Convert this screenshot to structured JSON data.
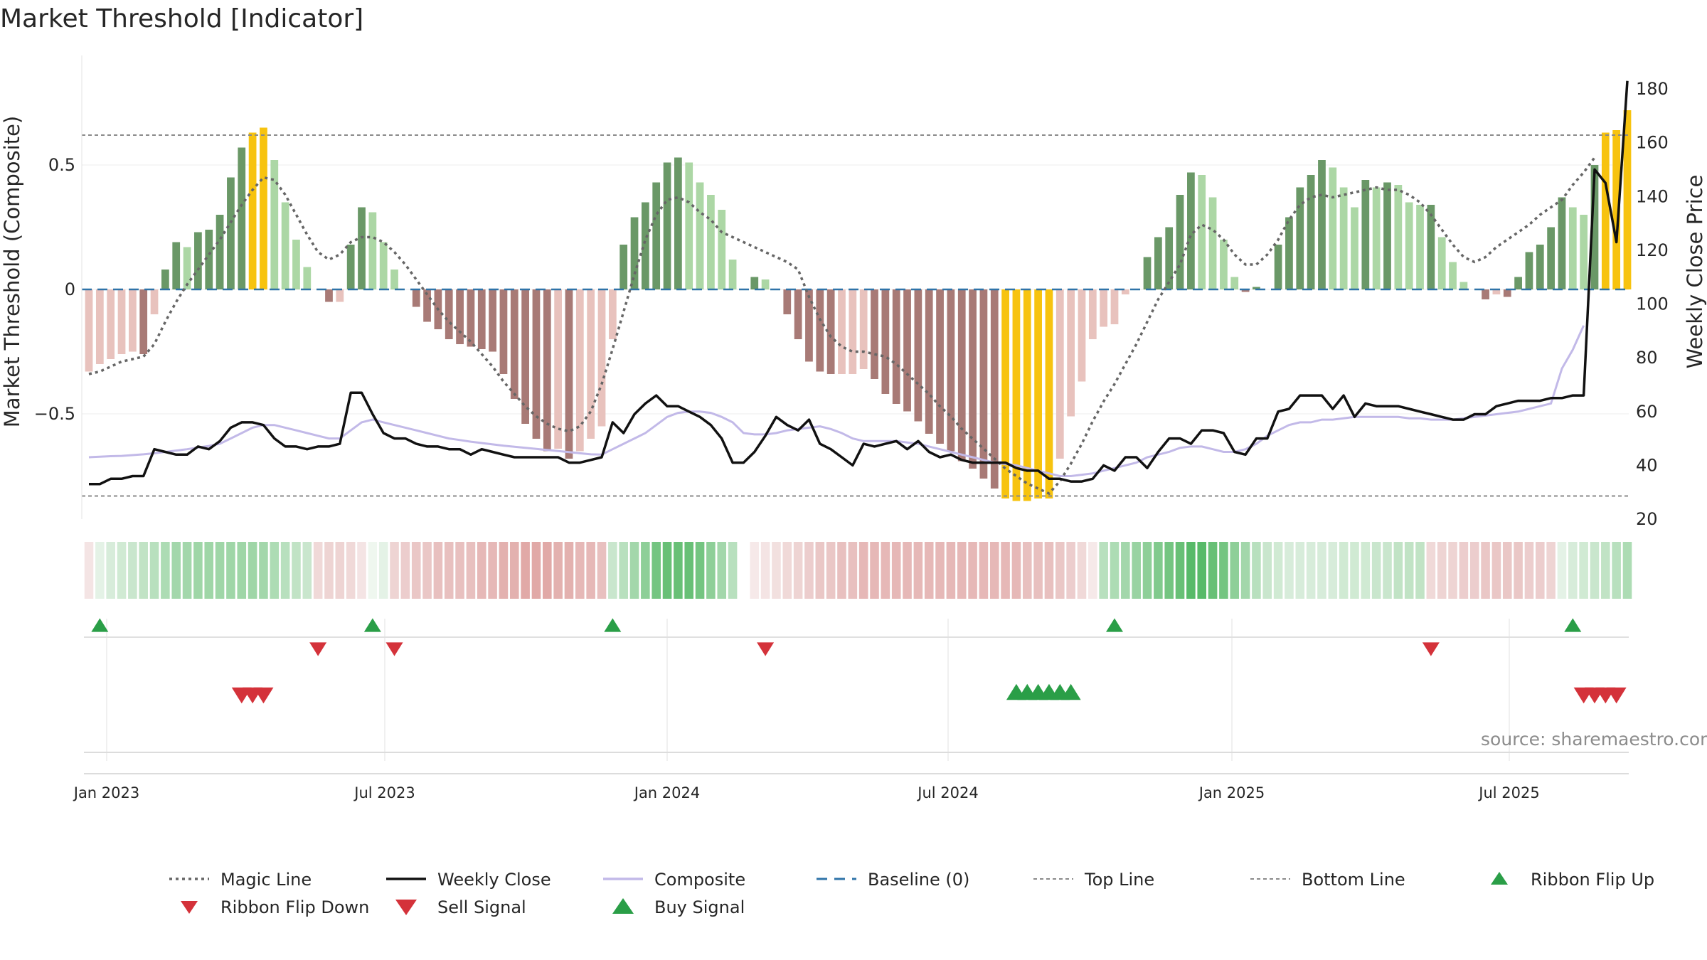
{
  "chart_data": {
    "type": "bar",
    "title": "Market Threshold [Indicator]",
    "ylabel_left": "Market Threshold (Composite)",
    "ylabel_right": "Weekly Close Price",
    "source": "source: sharemaestro.com",
    "x_tick_labels": [
      "Jan 2023",
      "Jul 2023",
      "Jan 2024",
      "Jul 2024",
      "Jan 2025",
      "Jul 2025"
    ],
    "left_axis": {
      "ticks": [
        0.5,
        0,
        -0.5
      ],
      "tick_labels": [
        "0.5",
        "0",
        "−0.5"
      ],
      "ylim": [
        -0.93,
        0.95
      ]
    },
    "right_axis": {
      "ticks": [
        180,
        160,
        140,
        120,
        100,
        80,
        60,
        40,
        20
      ],
      "tick_labels": [
        "180",
        "160",
        "140",
        "120",
        "100",
        "80",
        "60",
        "40",
        "20"
      ],
      "ylim": [
        20,
        185
      ]
    },
    "top_line": 0.62,
    "bottom_line": -0.83,
    "baseline": 0,
    "composite_bars": [
      -0.33,
      -0.3,
      -0.28,
      -0.26,
      -0.25,
      -0.26,
      -0.1,
      0.08,
      0.19,
      0.17,
      0.23,
      0.24,
      0.3,
      0.45,
      0.57,
      0.63,
      0.65,
      0.52,
      0.35,
      0.2,
      0.09,
      0.0,
      -0.05,
      -0.05,
      0.18,
      0.33,
      0.31,
      0.19,
      0.08,
      0.0,
      -0.07,
      -0.13,
      -0.16,
      -0.2,
      -0.22,
      -0.23,
      -0.24,
      -0.25,
      -0.34,
      -0.44,
      -0.54,
      -0.6,
      -0.65,
      -0.64,
      -0.68,
      -0.65,
      -0.6,
      -0.55,
      -0.2,
      0.18,
      0.29,
      0.35,
      0.43,
      0.51,
      0.53,
      0.51,
      0.43,
      0.38,
      0.32,
      0.12,
      0.0,
      0.05,
      0.04,
      0.0,
      -0.1,
      -0.2,
      -0.29,
      -0.33,
      -0.34,
      -0.34,
      -0.34,
      -0.32,
      -0.36,
      -0.42,
      -0.46,
      -0.49,
      -0.53,
      -0.58,
      -0.62,
      -0.65,
      -0.69,
      -0.72,
      -0.76,
      -0.8,
      -0.84,
      -0.85,
      -0.85,
      -0.84,
      -0.84,
      -0.68,
      -0.51,
      -0.37,
      -0.2,
      -0.15,
      -0.14,
      -0.02,
      0.0,
      0.13,
      0.21,
      0.25,
      0.38,
      0.47,
      0.46,
      0.37,
      0.2,
      0.05,
      -0.01,
      0.01,
      0.0,
      0.18,
      0.29,
      0.41,
      0.46,
      0.52,
      0.49,
      0.41,
      0.33,
      0.44,
      0.41,
      0.43,
      0.42,
      0.35,
      0.34,
      0.34,
      0.21,
      0.11,
      0.03,
      0.0,
      -0.04,
      -0.02,
      -0.03,
      0.05,
      0.15,
      0.18,
      0.25,
      0.37,
      0.33,
      0.3,
      0.5,
      0.63,
      0.64,
      0.72
    ],
    "magic_line": [
      -0.34,
      -0.33,
      -0.31,
      -0.29,
      -0.28,
      -0.27,
      -0.22,
      -0.13,
      -0.05,
      0.02,
      0.08,
      0.14,
      0.2,
      0.27,
      0.34,
      0.4,
      0.45,
      0.44,
      0.38,
      0.3,
      0.22,
      0.15,
      0.12,
      0.14,
      0.19,
      0.21,
      0.21,
      0.19,
      0.15,
      0.1,
      0.04,
      -0.02,
      -0.08,
      -0.13,
      -0.17,
      -0.21,
      -0.26,
      -0.31,
      -0.37,
      -0.42,
      -0.47,
      -0.51,
      -0.54,
      -0.56,
      -0.57,
      -0.55,
      -0.49,
      -0.38,
      -0.24,
      -0.09,
      0.06,
      0.2,
      0.3,
      0.36,
      0.37,
      0.35,
      0.31,
      0.28,
      0.23,
      0.21,
      0.19,
      0.17,
      0.15,
      0.13,
      0.11,
      0.08,
      -0.03,
      -0.12,
      -0.19,
      -0.23,
      -0.25,
      -0.25,
      -0.26,
      -0.27,
      -0.3,
      -0.34,
      -0.38,
      -0.42,
      -0.47,
      -0.51,
      -0.56,
      -0.6,
      -0.64,
      -0.68,
      -0.72,
      -0.75,
      -0.78,
      -0.8,
      -0.82,
      -0.77,
      -0.7,
      -0.62,
      -0.53,
      -0.45,
      -0.38,
      -0.3,
      -0.22,
      -0.13,
      -0.04,
      0.03,
      0.1,
      0.22,
      0.26,
      0.24,
      0.2,
      0.14,
      0.1,
      0.1,
      0.14,
      0.2,
      0.28,
      0.34,
      0.37,
      0.38,
      0.37,
      0.38,
      0.39,
      0.4,
      0.41,
      0.4,
      0.4,
      0.38,
      0.35,
      0.3,
      0.24,
      0.18,
      0.13,
      0.11,
      0.13,
      0.17,
      0.2,
      0.23,
      0.26,
      0.3,
      0.33,
      0.36,
      0.42,
      0.47,
      0.53
    ],
    "weekly_close": [
      33,
      33,
      35,
      35,
      36,
      36,
      46,
      45,
      44,
      44,
      47,
      46,
      49,
      54,
      56,
      56,
      55,
      50,
      47,
      47,
      46,
      47,
      47,
      48,
      67,
      67,
      59,
      52,
      50,
      50,
      48,
      47,
      47,
      46,
      46,
      44,
      46,
      45,
      44,
      43,
      43,
      43,
      43,
      43,
      41,
      41,
      42,
      43,
      56,
      52,
      59,
      63,
      66,
      62,
      62,
      60,
      58,
      55,
      50,
      41,
      41,
      45,
      51,
      58,
      55,
      53,
      57,
      48,
      46,
      43,
      40,
      48,
      47,
      48,
      49,
      46,
      49,
      45,
      43,
      44,
      42,
      41,
      41,
      41,
      41,
      39,
      38,
      38,
      35,
      35,
      34,
      34,
      35,
      40,
      38,
      43,
      43,
      39,
      45,
      50,
      50,
      48,
      53,
      53,
      52,
      45,
      44,
      50,
      50,
      60,
      61,
      66,
      66,
      66,
      61,
      66,
      58,
      63,
      62,
      62,
      62,
      61,
      60,
      59,
      58,
      57,
      57,
      59,
      59,
      62,
      63,
      64,
      64,
      64,
      65,
      65,
      66,
      66,
      150,
      145,
      123,
      183
    ],
    "composite_line": [
      43,
      43.2,
      43.4,
      43.5,
      43.8,
      44.1,
      44.5,
      45,
      45.5,
      46,
      46.6,
      47.2,
      48,
      50,
      52,
      54,
      55,
      55,
      54,
      53,
      52,
      51,
      50,
      50,
      53,
      56,
      57,
      56,
      55,
      54,
      53,
      52,
      51,
      50,
      49.4,
      48.8,
      48.3,
      47.8,
      47.3,
      46.9,
      46.5,
      46.1,
      45.7,
      45.3,
      44.9,
      44.5,
      44.1,
      44,
      46,
      48,
      50,
      52,
      55,
      58,
      59.5,
      60,
      60,
      59.5,
      58,
      56,
      52,
      51.5,
      51.5,
      52,
      53,
      53.5,
      54,
      54.5,
      53.5,
      52,
      50,
      49,
      49,
      49,
      49,
      48.5,
      48,
      47,
      46,
      45,
      44,
      43,
      42,
      41,
      40.5,
      40,
      39,
      38,
      37,
      36,
      36,
      36.5,
      37,
      38,
      39,
      40,
      41,
      43,
      44,
      45,
      46.5,
      47,
      47,
      46,
      45,
      45,
      46,
      48,
      51,
      53,
      55,
      56,
      56,
      57,
      57,
      57.5,
      58,
      58,
      58,
      58,
      58,
      57.5,
      57.5,
      57,
      57,
      57,
      57.5,
      58,
      58.5,
      59,
      59.5,
      60,
      61,
      62,
      63,
      76,
      83,
      92
    ],
    "ribbon": [
      -0.2,
      0.2,
      0.3,
      0.35,
      0.4,
      0.45,
      0.5,
      0.55,
      0.6,
      0.6,
      0.62,
      0.62,
      0.62,
      0.62,
      0.62,
      0.62,
      0.6,
      0.55,
      0.5,
      0.45,
      0.4,
      -0.3,
      -0.35,
      -0.35,
      -0.3,
      -0.2,
      0.1,
      0.2,
      -0.35,
      -0.4,
      -0.45,
      -0.45,
      -0.5,
      -0.5,
      -0.5,
      -0.5,
      -0.55,
      -0.55,
      -0.6,
      -0.6,
      -0.65,
      -0.65,
      -0.65,
      -0.6,
      -0.6,
      -0.55,
      -0.55,
      -0.5,
      0.4,
      0.5,
      0.6,
      0.7,
      0.8,
      0.85,
      0.85,
      0.85,
      0.8,
      0.7,
      0.6,
      0.5,
      null,
      -0.15,
      -0.2,
      -0.25,
      -0.3,
      -0.35,
      -0.4,
      -0.45,
      -0.45,
      -0.5,
      -0.5,
      -0.55,
      -0.55,
      -0.55,
      -0.55,
      -0.55,
      -0.55,
      -0.55,
      -0.55,
      -0.55,
      -0.55,
      -0.55,
      -0.55,
      -0.55,
      -0.55,
      -0.55,
      -0.5,
      -0.5,
      -0.5,
      -0.45,
      -0.4,
      -0.3,
      -0.15,
      0.5,
      0.55,
      0.6,
      0.65,
      0.7,
      0.75,
      0.8,
      0.85,
      0.9,
      0.9,
      0.85,
      0.8,
      0.7,
      0.6,
      0.5,
      0.4,
      0.35,
      0.3,
      0.3,
      0.3,
      0.3,
      0.3,
      0.35,
      0.35,
      0.35,
      0.4,
      0.4,
      0.45,
      0.45,
      0.45,
      -0.3,
      -0.35,
      -0.35,
      -0.4,
      -0.4,
      -0.45,
      -0.45,
      -0.45,
      -0.45,
      -0.4,
      -0.4,
      -0.35,
      0.2,
      0.3,
      0.35,
      0.4,
      0.45,
      0.5,
      0.55
    ],
    "ribbon_flip_up": [
      1,
      26,
      48,
      94,
      136
    ],
    "ribbon_flip_down": [
      21,
      28,
      62,
      123
    ],
    "sell_signal": [
      14,
      15,
      16,
      137,
      138,
      139,
      140
    ],
    "buy_signal": [
      85,
      86,
      87,
      88,
      89,
      90
    ],
    "colors": {
      "strong_up": "#6a9867",
      "weak_up": "#acd7a5",
      "strong_down": "#a87a76",
      "weak_down": "#e8c2bd",
      "extreme": "#f7c30f",
      "magic_line": "#666666",
      "weekly_close": "#111111",
      "composite_line": "#c2b9e8",
      "baseline": "#2f73a8",
      "ref_line": "#8a8a8a",
      "buy": "#2a9e47",
      "sell": "#d4323a"
    },
    "legend": [
      {
        "label": "Magic Line",
        "kind": "dotted",
        "color": "#666666"
      },
      {
        "label": "Weekly Close",
        "kind": "solid",
        "color": "#111111"
      },
      {
        "label": "Composite",
        "kind": "solid-light",
        "color": "#c2b9e8"
      },
      {
        "label": "Baseline (0)",
        "kind": "dashed",
        "color": "#2f73a8"
      },
      {
        "label": "Top Line",
        "kind": "fine-dash",
        "color": "#8a8a8a"
      },
      {
        "label": "Bottom Line",
        "kind": "fine-dash",
        "color": "#8a8a8a"
      },
      {
        "label": "Ribbon Flip Up",
        "kind": "tri-up",
        "color": "#2a9e47"
      },
      {
        "label": "Ribbon Flip Down",
        "kind": "tri-down",
        "color": "#d4323a"
      },
      {
        "label": "Sell Signal",
        "kind": "tri-down-big",
        "color": "#d4323a"
      },
      {
        "label": "Buy Signal",
        "kind": "tri-up-big",
        "color": "#2a9e47"
      }
    ]
  }
}
